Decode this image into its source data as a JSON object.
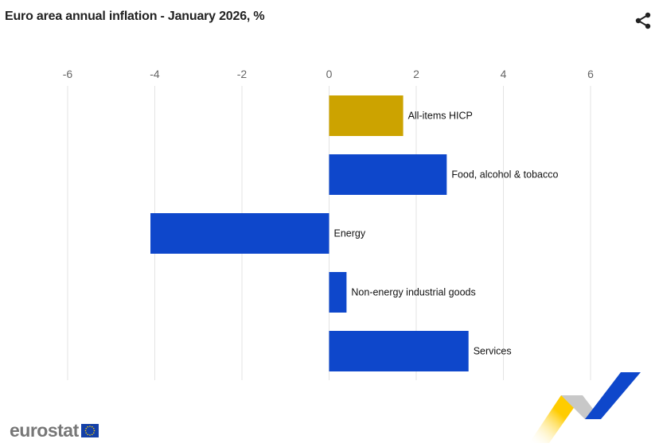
{
  "chart_data": {
    "type": "bar",
    "orientation": "horizontal",
    "title": "Euro area annual inflation - January 2026, %",
    "categories": [
      "All-items HICP",
      "Food, alcohol & tobacco",
      "Energy",
      "Non-energy industrial goods",
      "Services"
    ],
    "values": [
      1.7,
      2.7,
      -4.1,
      0.4,
      3.2
    ],
    "colors": [
      "#cca300",
      "#0e47cb",
      "#0e47cb",
      "#0e47cb",
      "#0e47cb"
    ],
    "xlim": [
      -6,
      6
    ],
    "xticks": [
      "-6",
      "-4",
      "-2",
      "0",
      "2",
      "4",
      "6"
    ],
    "xtick_values": [
      -6,
      -4,
      -2,
      0,
      2,
      4,
      6
    ],
    "grid": true,
    "axis_position": "top"
  },
  "branding": {
    "logo_text": "eurostat"
  },
  "icons": {
    "share": "share-icon"
  }
}
